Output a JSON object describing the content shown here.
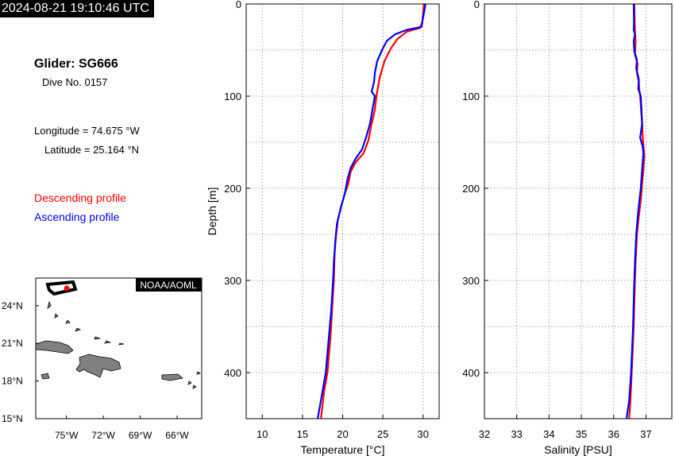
{
  "header": {
    "timestamp": "2024-08-21 19:10:46 UTC"
  },
  "info": {
    "glider": "Glider: SG666",
    "dive": "Dive No. 0157",
    "longitude": "Longitude = 74.675 °W",
    "latitude": "Latitude = 25.164 °N"
  },
  "legend": {
    "descending": {
      "label": "Descending profile",
      "color": "#ff0000"
    },
    "ascending": {
      "label": "Ascending profile",
      "color": "#0000ff"
    }
  },
  "map": {
    "badge": "NOAA/AOML",
    "lat_ticks": [
      "24°N",
      "21°N",
      "18°N",
      "15°N"
    ],
    "lon_ticks": [
      "75°W",
      "72°W",
      "69°W",
      "66°W"
    ],
    "lat_range": [
      15,
      26.2
    ],
    "lon_range": [
      -77.5,
      -64
    ]
  },
  "chart_data": [
    {
      "type": "line",
      "title": "",
      "xlabel": "Temperature [°C]",
      "ylabel": "Depth [m]",
      "xlim": [
        8,
        32
      ],
      "ylim": [
        450,
        0
      ],
      "x_ticks": [
        "10",
        "15",
        "20",
        "25",
        "30"
      ],
      "y_ticks": [
        "0",
        "100",
        "200",
        "300",
        "400"
      ],
      "grid": true,
      "series": [
        {
          "name": "Descending profile",
          "color": "#ff0000",
          "points": [
            [
              30.1,
              0
            ],
            [
              30.0,
              10
            ],
            [
              29.9,
              20
            ],
            [
              29.6,
              26
            ],
            [
              28.0,
              30
            ],
            [
              26.8,
              38
            ],
            [
              26.0,
              48
            ],
            [
              25.2,
              62
            ],
            [
              24.6,
              80
            ],
            [
              24.2,
              100
            ],
            [
              24.0,
              115
            ],
            [
              23.6,
              130
            ],
            [
              23.2,
              148
            ],
            [
              22.6,
              162
            ],
            [
              21.6,
              172
            ],
            [
              21.0,
              182
            ],
            [
              20.7,
              195
            ],
            [
              20.3,
              205
            ],
            [
              19.8,
              220
            ],
            [
              19.4,
              235
            ],
            [
              19.2,
              250
            ],
            [
              19.0,
              270
            ],
            [
              18.9,
              300
            ],
            [
              18.7,
              330
            ],
            [
              18.5,
              360
            ],
            [
              18.1,
              400
            ],
            [
              17.7,
              420
            ],
            [
              17.3,
              450
            ]
          ]
        },
        {
          "name": "Ascending profile",
          "color": "#0000ff",
          "points": [
            [
              30.3,
              0
            ],
            [
              30.1,
              10
            ],
            [
              29.9,
              20
            ],
            [
              29.8,
              25
            ],
            [
              28.0,
              28
            ],
            [
              26.5,
              33
            ],
            [
              25.5,
              40
            ],
            [
              24.9,
              50
            ],
            [
              24.3,
              62
            ],
            [
              24.0,
              75
            ],
            [
              23.9,
              85
            ],
            [
              23.6,
              95
            ],
            [
              24.0,
              100
            ],
            [
              23.8,
              110
            ],
            [
              23.4,
              130
            ],
            [
              22.9,
              145
            ],
            [
              22.4,
              158
            ],
            [
              21.6,
              168
            ],
            [
              21.0,
              178
            ],
            [
              20.6,
              190
            ],
            [
              20.3,
              205
            ],
            [
              19.8,
              220
            ],
            [
              19.3,
              238
            ],
            [
              19.1,
              255
            ],
            [
              18.9,
              280
            ],
            [
              18.8,
              300
            ],
            [
              18.6,
              330
            ],
            [
              18.3,
              360
            ],
            [
              17.9,
              400
            ],
            [
              17.5,
              420
            ],
            [
              16.9,
              450
            ]
          ]
        }
      ]
    },
    {
      "type": "line",
      "title": "",
      "xlabel": "Salinity [PSU]",
      "ylabel": "",
      "xlim": [
        32,
        37.8
      ],
      "ylim": [
        450,
        0
      ],
      "x_ticks": [
        "32",
        "33",
        "34",
        "35",
        "36",
        "37"
      ],
      "y_ticks": [
        "0",
        "100",
        "200",
        "300",
        "400"
      ],
      "grid": true,
      "series": [
        {
          "name": "Descending profile",
          "color": "#ff0000",
          "points": [
            [
              36.64,
              0
            ],
            [
              36.65,
              20
            ],
            [
              36.66,
              30
            ],
            [
              36.68,
              40
            ],
            [
              36.66,
              55
            ],
            [
              36.74,
              65
            ],
            [
              36.72,
              75
            ],
            [
              36.78,
              85
            ],
            [
              36.8,
              95
            ],
            [
              36.82,
              100
            ],
            [
              36.85,
              115
            ],
            [
              36.88,
              130
            ],
            [
              36.9,
              145
            ],
            [
              36.95,
              165
            ],
            [
              36.92,
              180
            ],
            [
              36.88,
              195
            ],
            [
              36.85,
              210
            ],
            [
              36.78,
              230
            ],
            [
              36.72,
              250
            ],
            [
              36.68,
              280
            ],
            [
              36.65,
              310
            ],
            [
              36.62,
              350
            ],
            [
              36.56,
              400
            ],
            [
              36.52,
              430
            ],
            [
              36.48,
              450
            ]
          ]
        },
        {
          "name": "Ascending profile",
          "color": "#0000ff",
          "points": [
            [
              36.62,
              0
            ],
            [
              36.63,
              20
            ],
            [
              36.62,
              28
            ],
            [
              36.66,
              33
            ],
            [
              36.62,
              40
            ],
            [
              36.64,
              52
            ],
            [
              36.72,
              60
            ],
            [
              36.7,
              70
            ],
            [
              36.78,
              82
            ],
            [
              36.76,
              92
            ],
            [
              36.84,
              100
            ],
            [
              36.86,
              115
            ],
            [
              36.88,
              130
            ],
            [
              36.82,
              145
            ],
            [
              36.9,
              155
            ],
            [
              36.92,
              162
            ],
            [
              36.88,
              180
            ],
            [
              36.84,
              200
            ],
            [
              36.76,
              225
            ],
            [
              36.7,
              250
            ],
            [
              36.66,
              280
            ],
            [
              36.63,
              310
            ],
            [
              36.6,
              350
            ],
            [
              36.54,
              400
            ],
            [
              36.48,
              430
            ],
            [
              36.4,
              450
            ]
          ]
        }
      ]
    }
  ]
}
